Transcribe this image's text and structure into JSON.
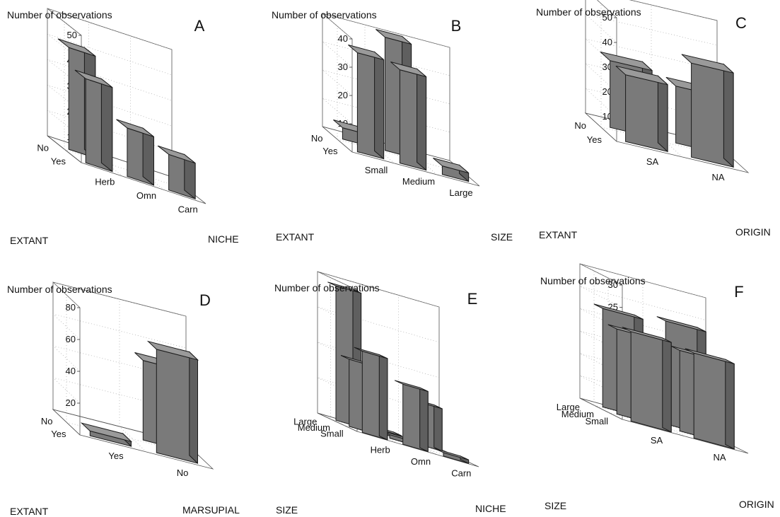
{
  "figure": {
    "axis_title": "Number of observations"
  },
  "chart_data": [
    {
      "type": "bar",
      "panel": "A",
      "zlabel": "Number of observations",
      "zlim": [
        0,
        50
      ],
      "zticks": [
        10,
        20,
        30,
        40,
        50
      ],
      "x_dim": "NICHE",
      "x_categories": [
        "Herb",
        "Omn",
        "Carn"
      ],
      "y_dim": "EXTANT",
      "y_categories": [
        "Yes",
        "No"
      ],
      "bars": [
        {
          "x": "Herb",
          "y": "No",
          "value": 40
        },
        {
          "x": "Herb",
          "y": "Yes",
          "value": 33
        },
        {
          "x": "Omn",
          "y": "Yes",
          "value": 19
        },
        {
          "x": "Carn",
          "y": "Yes",
          "value": 14
        }
      ]
    },
    {
      "type": "bar",
      "panel": "B",
      "zlabel": "Number of observations",
      "zlim": [
        0,
        40
      ],
      "zticks": [
        10,
        20,
        30,
        40
      ],
      "x_dim": "SIZE",
      "x_categories": [
        "Small",
        "Medium",
        "Large"
      ],
      "y_dim": "EXTANT",
      "y_categories": [
        "Yes",
        "No"
      ],
      "bars": [
        {
          "x": "Small",
          "y": "No",
          "value": 4
        },
        {
          "x": "Small",
          "y": "Yes",
          "value": 35
        },
        {
          "x": "Medium",
          "y": "No",
          "value": 40
        },
        {
          "x": "Medium",
          "y": "Yes",
          "value": 33
        },
        {
          "x": "Large",
          "y": "Yes",
          "value": 3
        }
      ]
    },
    {
      "type": "bar",
      "panel": "C",
      "zlabel": "Number of observations",
      "zlim": [
        0,
        50
      ],
      "zticks": [
        10,
        20,
        30,
        40,
        50
      ],
      "x_dim": "ORIGIN",
      "x_categories": [
        "SA",
        "NA"
      ],
      "y_dim": "EXTANT",
      "y_categories": [
        "Yes",
        "No"
      ],
      "bars": [
        {
          "x": "SA",
          "y": "No",
          "value": 27
        },
        {
          "x": "SA",
          "y": "Yes",
          "value": 27
        },
        {
          "x": "NA",
          "y": "No",
          "value": 23
        },
        {
          "x": "NA",
          "y": "Yes",
          "value": 38
        }
      ]
    },
    {
      "type": "bar",
      "panel": "D",
      "zlabel": "Number of observations",
      "zlim": [
        0,
        80
      ],
      "zticks": [
        20,
        40,
        60,
        80
      ],
      "x_dim": "MARSUPIAL",
      "x_categories": [
        "Yes",
        "No"
      ],
      "y_dim": "EXTANT",
      "y_categories": [
        "Yes",
        "No"
      ],
      "bars": [
        {
          "x": "Yes",
          "y": "Yes",
          "value": 3
        },
        {
          "x": "No",
          "y": "No",
          "value": 50
        },
        {
          "x": "No",
          "y": "Yes",
          "value": 65
        }
      ]
    },
    {
      "type": "bar",
      "panel": "E",
      "zlabel": "Number of observations",
      "zlim": [
        0,
        40
      ],
      "zticks": [
        10,
        20,
        30,
        40
      ],
      "x_dim": "NICHE",
      "x_categories": [
        "Herb",
        "Omn",
        "Carn"
      ],
      "y_dim": "SIZE",
      "y_categories": [
        "Small",
        "Medium",
        "Large"
      ],
      "bars": [
        {
          "x": "Herb",
          "y": "Large",
          "value": 38
        },
        {
          "x": "Herb",
          "y": "Medium",
          "value": 19
        },
        {
          "x": "Herb",
          "y": "Small",
          "value": 23
        },
        {
          "x": "Omn",
          "y": "Large",
          "value": 1
        },
        {
          "x": "Omn",
          "y": "Medium",
          "value": 1
        },
        {
          "x": "Omn",
          "y": "Small",
          "value": 17
        },
        {
          "x": "Carn",
          "y": "Large",
          "value": 12
        },
        {
          "x": "Carn",
          "y": "Small",
          "value": 1
        }
      ]
    },
    {
      "type": "bar",
      "panel": "F",
      "zlabel": "Number of observations",
      "zlim": [
        0,
        30
      ],
      "zticks": [
        5,
        10,
        15,
        20,
        25,
        30
      ],
      "x_dim": "ORIGIN",
      "x_categories": [
        "SA",
        "NA"
      ],
      "y_dim": "SIZE",
      "y_categories": [
        "Small",
        "Medium",
        "Large"
      ],
      "bars": [
        {
          "x": "SA",
          "y": "Large",
          "value": 22
        },
        {
          "x": "SA",
          "y": "Medium",
          "value": 19
        },
        {
          "x": "SA",
          "y": "Small",
          "value": 20
        },
        {
          "x": "NA",
          "y": "Large",
          "value": 23
        },
        {
          "x": "NA",
          "y": "Medium",
          "value": 18
        },
        {
          "x": "NA",
          "y": "Small",
          "value": 19
        }
      ]
    }
  ]
}
